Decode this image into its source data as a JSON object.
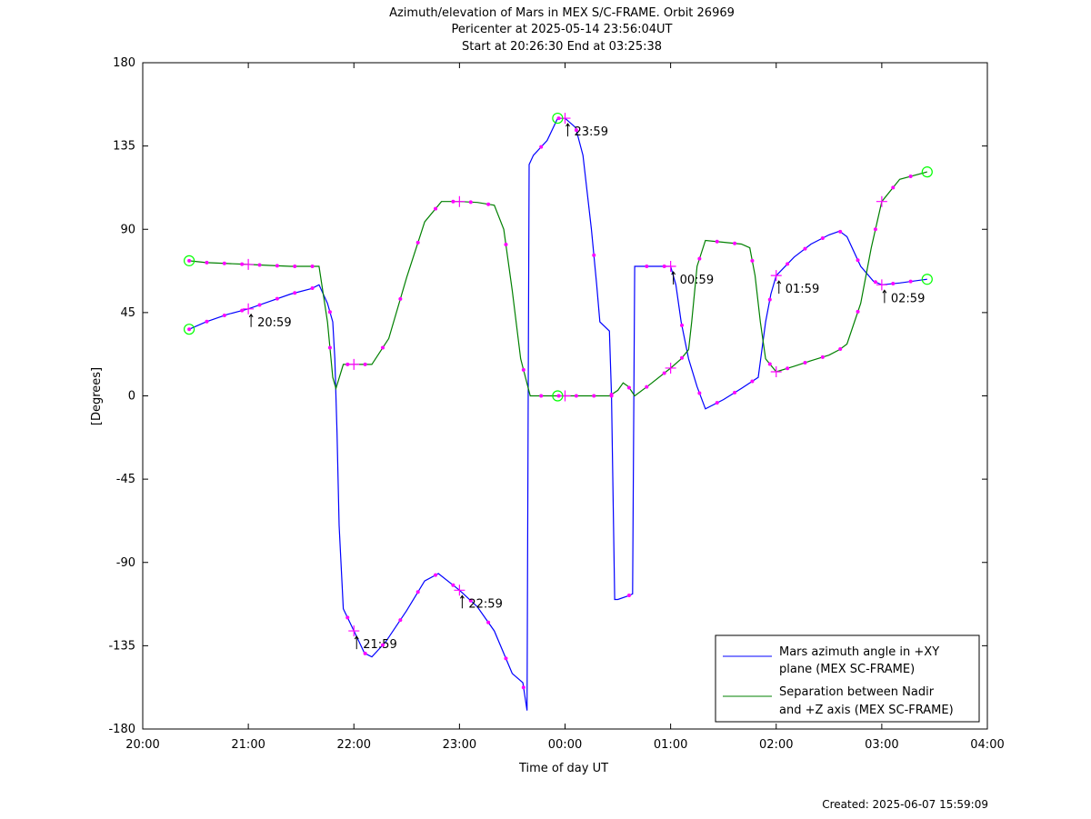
{
  "chart_data": {
    "type": "line",
    "title_lines": [
      "Azimuth/elevation of Mars in MEX S/C-FRAME.  Orbit 26969",
      "Pericenter at 2025-05-14 23:56:04UT",
      "Start at 20:26:30 End at 03:25:38"
    ],
    "xlabel": "Time of day UT",
    "ylabel": "[Degrees]",
    "xlim_hours": [
      20,
      28
    ],
    "ylim": [
      -180,
      180
    ],
    "x_ticks": [
      {
        "h": 20,
        "label": "20:00"
      },
      {
        "h": 21,
        "label": "21:00"
      },
      {
        "h": 22,
        "label": "22:00"
      },
      {
        "h": 23,
        "label": "23:00"
      },
      {
        "h": 24,
        "label": "00:00"
      },
      {
        "h": 25,
        "label": "01:00"
      },
      {
        "h": 26,
        "label": "02:00"
      },
      {
        "h": 27,
        "label": "03:00"
      },
      {
        "h": 28,
        "label": "04:00"
      }
    ],
    "y_ticks": [
      180,
      135,
      90,
      45,
      0,
      -45,
      -90,
      -135,
      -180
    ],
    "colors": {
      "azimuth": "#0000ff",
      "separation": "#008000",
      "marker": "#ff00ff",
      "endpoint": "#00ff00"
    },
    "series": [
      {
        "name": "Mars azimuth angle in +XY plane (MEX SC-FRAME)",
        "legend_lines": [
          "Mars azimuth angle in +XY",
          "plane (MEX SC-FRAME)"
        ],
        "color": "#0000ff",
        "points": [
          [
            20.44,
            36
          ],
          [
            20.6,
            40
          ],
          [
            20.8,
            44
          ],
          [
            21.0,
            47
          ],
          [
            21.2,
            51
          ],
          [
            21.4,
            55
          ],
          [
            21.6,
            58
          ],
          [
            21.67,
            60
          ],
          [
            21.75,
            50
          ],
          [
            21.8,
            40
          ],
          [
            21.82,
            20
          ],
          [
            21.84,
            -20
          ],
          [
            21.86,
            -70
          ],
          [
            21.9,
            -115
          ],
          [
            22.0,
            -127
          ],
          [
            22.1,
            -139
          ],
          [
            22.17,
            -141
          ],
          [
            22.3,
            -133
          ],
          [
            22.5,
            -116
          ],
          [
            22.67,
            -100
          ],
          [
            22.8,
            -96
          ],
          [
            23.0,
            -105
          ],
          [
            23.17,
            -114
          ],
          [
            23.33,
            -127
          ],
          [
            23.5,
            -150
          ],
          [
            23.6,
            -155
          ],
          [
            23.64,
            -170
          ],
          [
            23.65,
            -10
          ],
          [
            23.66,
            125
          ],
          [
            23.7,
            130
          ],
          [
            23.83,
            138
          ],
          [
            23.93,
            150
          ],
          [
            24.0,
            150
          ],
          [
            24.1,
            145
          ],
          [
            24.17,
            130
          ],
          [
            24.25,
            90
          ],
          [
            24.3,
            60
          ],
          [
            24.33,
            40
          ],
          [
            24.42,
            35
          ],
          [
            24.44,
            0
          ],
          [
            24.47,
            -110
          ],
          [
            24.5,
            -110
          ],
          [
            24.6,
            -108
          ],
          [
            24.64,
            -107
          ],
          [
            24.66,
            70
          ],
          [
            24.7,
            70
          ],
          [
            25.0,
            70
          ],
          [
            25.05,
            60
          ],
          [
            25.1,
            40
          ],
          [
            25.17,
            20
          ],
          [
            25.25,
            5
          ],
          [
            25.33,
            -7
          ],
          [
            25.5,
            -2
          ],
          [
            25.67,
            4
          ],
          [
            25.83,
            10
          ],
          [
            25.9,
            40
          ],
          [
            25.95,
            55
          ],
          [
            26.0,
            65
          ],
          [
            26.17,
            75
          ],
          [
            26.33,
            82
          ],
          [
            26.5,
            87
          ],
          [
            26.6,
            89
          ],
          [
            26.67,
            86
          ],
          [
            26.8,
            70
          ],
          [
            26.92,
            62
          ],
          [
            27.0,
            60
          ],
          [
            27.17,
            61
          ],
          [
            27.43,
            63
          ]
        ]
      },
      {
        "name": "Separation between Nadir and +Z axis (MEX SC-FRAME)",
        "legend_lines": [
          "Separation between Nadir",
          "and +Z axis (MEX SC-FRAME)"
        ],
        "color": "#008000",
        "points": [
          [
            20.44,
            73
          ],
          [
            20.6,
            72
          ],
          [
            20.8,
            71.5
          ],
          [
            21.0,
            71
          ],
          [
            21.2,
            70.5
          ],
          [
            21.4,
            70
          ],
          [
            21.6,
            70
          ],
          [
            21.67,
            70
          ],
          [
            21.75,
            40
          ],
          [
            21.8,
            10
          ],
          [
            21.83,
            4
          ],
          [
            21.9,
            17
          ],
          [
            22.0,
            17
          ],
          [
            22.17,
            17
          ],
          [
            22.33,
            31
          ],
          [
            22.5,
            64
          ],
          [
            22.67,
            94
          ],
          [
            22.83,
            105
          ],
          [
            23.0,
            105
          ],
          [
            23.17,
            104.5
          ],
          [
            23.33,
            103
          ],
          [
            23.42,
            90
          ],
          [
            23.5,
            57
          ],
          [
            23.58,
            20
          ],
          [
            23.67,
            0
          ],
          [
            23.8,
            0
          ],
          [
            24.0,
            0
          ],
          [
            24.17,
            0
          ],
          [
            24.33,
            0
          ],
          [
            24.42,
            0
          ],
          [
            24.5,
            3
          ],
          [
            24.55,
            7
          ],
          [
            24.6,
            5
          ],
          [
            24.66,
            0
          ],
          [
            24.8,
            6
          ],
          [
            25.0,
            15
          ],
          [
            25.1,
            20
          ],
          [
            25.17,
            25
          ],
          [
            25.2,
            40
          ],
          [
            25.25,
            70
          ],
          [
            25.33,
            84
          ],
          [
            25.5,
            83
          ],
          [
            25.67,
            82
          ],
          [
            25.75,
            80
          ],
          [
            25.8,
            65
          ],
          [
            25.85,
            40
          ],
          [
            25.9,
            20
          ],
          [
            26.0,
            13
          ],
          [
            26.17,
            16
          ],
          [
            26.33,
            19
          ],
          [
            26.5,
            22
          ],
          [
            26.6,
            25
          ],
          [
            26.67,
            28
          ],
          [
            26.8,
            50
          ],
          [
            26.9,
            80
          ],
          [
            27.0,
            105
          ],
          [
            27.17,
            117
          ],
          [
            27.43,
            121
          ]
        ]
      }
    ],
    "hour_labels": [
      {
        "h": 21.0,
        "label": "20:59"
      },
      {
        "h": 22.0,
        "label": "21:59"
      },
      {
        "h": 23.0,
        "label": "22:59"
      },
      {
        "h": 24.0,
        "label": "23:59"
      },
      {
        "h": 25.0,
        "label": "00:59"
      },
      {
        "h": 26.0,
        "label": "01:59"
      },
      {
        "h": 27.0,
        "label": "02:59"
      }
    ],
    "legend_position": "bottom-right",
    "grid": false
  },
  "footer": {
    "created": "Created: 2025-06-07 15:59:09"
  }
}
